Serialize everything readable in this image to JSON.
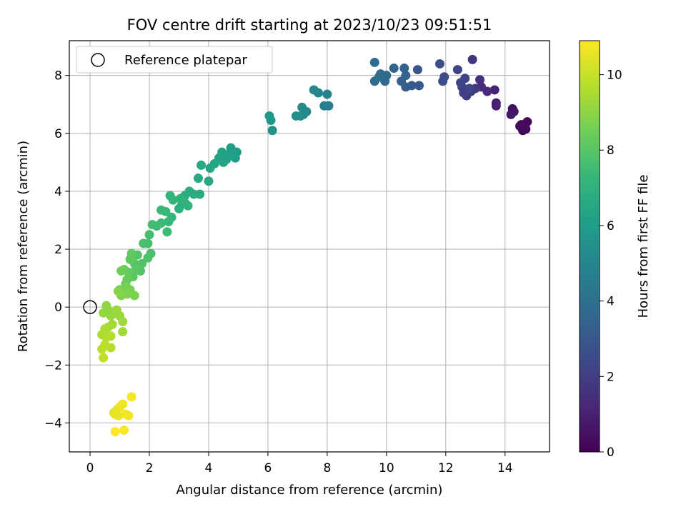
{
  "chart_data": {
    "type": "scatter",
    "title": "FOV centre drift starting at 2023/10/23 09:51:51",
    "xlabel": "Angular distance from reference (arcmin)",
    "ylabel": "Rotation from reference (arcmin)",
    "xlim": [
      -0.7,
      15.5
    ],
    "ylim": [
      -5.0,
      9.2
    ],
    "xticks": [
      0,
      2,
      4,
      6,
      8,
      10,
      12,
      14
    ],
    "yticks": [
      -4,
      -2,
      0,
      2,
      4,
      6,
      8
    ],
    "xtick_labels": [
      "0",
      "2",
      "4",
      "6",
      "8",
      "10",
      "12",
      "14"
    ],
    "ytick_labels": [
      "−4",
      "−2",
      "0",
      "2",
      "4",
      "6",
      "8"
    ],
    "grid": true,
    "legend": {
      "placement": "top-left",
      "label": "Reference platepar"
    },
    "reference_point": {
      "x": 0,
      "y": 0
    },
    "colorbar": {
      "label": "Hours from first FF file",
      "range": [
        0,
        10.9
      ],
      "ticks": [
        0,
        2,
        4,
        6,
        8,
        10
      ],
      "tick_labels": [
        "0",
        "2",
        "4",
        "6",
        "8",
        "10"
      ],
      "colormap": [
        "#440154",
        "#482878",
        "#3e4989",
        "#31688e",
        "#26828e",
        "#1f9e89",
        "#35b779",
        "#6ece58",
        "#b5de2b",
        "#fde725"
      ]
    },
    "series": [
      {
        "points": [
          [
            14.6,
            6.1,
            0.05
          ],
          [
            14.7,
            6.15,
            0.1
          ],
          [
            14.55,
            6.3,
            0.15
          ],
          [
            14.75,
            6.4,
            0.2
          ],
          [
            14.5,
            6.25,
            0.25
          ],
          [
            14.65,
            6.2,
            0.3
          ],
          [
            14.25,
            6.85,
            0.45
          ],
          [
            14.3,
            6.75,
            0.55
          ],
          [
            14.2,
            6.65,
            0.65
          ],
          [
            13.7,
            7.05,
            0.85
          ],
          [
            13.7,
            6.95,
            0.95
          ],
          [
            13.65,
            7.5,
            1.1
          ],
          [
            13.4,
            7.45,
            1.3
          ],
          [
            13.2,
            7.6,
            1.45
          ],
          [
            13.15,
            7.85,
            1.55
          ],
          [
            12.9,
            8.55,
            1.7
          ],
          [
            13.0,
            7.55,
            1.8
          ],
          [
            12.85,
            7.45,
            1.9
          ],
          [
            12.7,
            7.3,
            2.0
          ],
          [
            12.6,
            7.4,
            2.05
          ],
          [
            12.55,
            7.6,
            2.1
          ],
          [
            12.65,
            7.9,
            2.15
          ],
          [
            12.4,
            8.2,
            2.25
          ],
          [
            12.5,
            7.75,
            2.3
          ],
          [
            12.8,
            7.55,
            2.35
          ],
          [
            11.95,
            7.95,
            2.5
          ],
          [
            11.9,
            7.8,
            2.6
          ],
          [
            11.8,
            8.4,
            2.7
          ],
          [
            11.05,
            8.2,
            2.9
          ],
          [
            11.1,
            7.65,
            3.0
          ],
          [
            10.85,
            7.65,
            3.1
          ],
          [
            10.65,
            7.6,
            3.2
          ],
          [
            10.5,
            7.8,
            3.3
          ],
          [
            10.6,
            8.25,
            3.35
          ],
          [
            10.65,
            8.0,
            3.4
          ],
          [
            10.25,
            8.25,
            3.5
          ],
          [
            10.0,
            8.0,
            3.6
          ],
          [
            9.9,
            7.9,
            3.65
          ],
          [
            9.8,
            8.05,
            3.7
          ],
          [
            9.95,
            7.8,
            3.75
          ],
          [
            9.6,
            7.8,
            3.8
          ],
          [
            9.6,
            8.45,
            3.9
          ],
          [
            9.75,
            7.95,
            3.95
          ],
          [
            8.05,
            6.95,
            4.6
          ],
          [
            7.9,
            6.95,
            4.7
          ],
          [
            8.0,
            7.35,
            4.8
          ],
          [
            7.7,
            7.4,
            4.9
          ],
          [
            7.55,
            7.5,
            5.0
          ],
          [
            7.3,
            6.75,
            5.1
          ],
          [
            7.2,
            6.65,
            5.2
          ],
          [
            7.15,
            6.9,
            5.25
          ],
          [
            7.1,
            6.6,
            5.3
          ],
          [
            6.95,
            6.6,
            5.4
          ],
          [
            6.15,
            6.1,
            5.6
          ],
          [
            6.1,
            6.45,
            5.7
          ],
          [
            6.05,
            6.6,
            5.8
          ],
          [
            4.95,
            5.35,
            6.0
          ],
          [
            4.9,
            5.15,
            6.05
          ],
          [
            4.75,
            5.5,
            6.1
          ],
          [
            4.7,
            5.3,
            6.15
          ],
          [
            4.6,
            5.1,
            6.2
          ],
          [
            4.5,
            5.0,
            6.25
          ],
          [
            4.45,
            5.35,
            6.3
          ],
          [
            4.35,
            5.15,
            6.35
          ],
          [
            4.2,
            4.95,
            6.4
          ],
          [
            4.05,
            4.8,
            6.45
          ],
          [
            4.0,
            4.35,
            6.5
          ],
          [
            3.75,
            4.9,
            6.55
          ],
          [
            3.65,
            4.45,
            6.6
          ],
          [
            3.7,
            3.9,
            6.65
          ],
          [
            3.5,
            3.9,
            6.7
          ],
          [
            3.35,
            4.0,
            6.75
          ],
          [
            3.2,
            3.85,
            6.8
          ],
          [
            3.1,
            3.55,
            6.85
          ],
          [
            3.0,
            3.4,
            6.9
          ],
          [
            3.2,
            3.6,
            6.95
          ],
          [
            3.3,
            3.5,
            7.0
          ],
          [
            3.05,
            3.75,
            7.05
          ],
          [
            2.8,
            3.7,
            7.1
          ],
          [
            2.7,
            3.85,
            7.15
          ],
          [
            2.75,
            3.1,
            7.2
          ],
          [
            2.65,
            2.95,
            7.25
          ],
          [
            2.55,
            3.3,
            7.3
          ],
          [
            2.4,
            3.35,
            7.35
          ],
          [
            2.4,
            2.9,
            7.4
          ],
          [
            2.6,
            2.6,
            7.45
          ],
          [
            2.25,
            2.8,
            7.5
          ],
          [
            2.1,
            2.85,
            7.55
          ],
          [
            2.0,
            2.5,
            7.6
          ],
          [
            1.95,
            2.2,
            7.65
          ],
          [
            1.8,
            2.2,
            7.7
          ],
          [
            2.05,
            1.85,
            7.75
          ],
          [
            1.95,
            1.7,
            7.8
          ],
          [
            1.75,
            1.5,
            7.85
          ],
          [
            1.7,
            1.25,
            7.9
          ],
          [
            1.6,
            1.8,
            7.95
          ],
          [
            1.5,
            1.5,
            8.0
          ],
          [
            1.55,
            1.3,
            8.05
          ],
          [
            1.45,
            1.05,
            8.1
          ],
          [
            1.4,
            1.85,
            8.15
          ],
          [
            1.35,
            1.65,
            8.2
          ],
          [
            1.3,
            1.2,
            8.25
          ],
          [
            1.25,
            0.95,
            8.3
          ],
          [
            1.2,
            0.8,
            8.35
          ],
          [
            1.15,
            1.3,
            8.4
          ],
          [
            1.05,
            1.25,
            8.45
          ],
          [
            1.0,
            0.6,
            8.5
          ],
          [
            1.1,
            0.5,
            8.55
          ],
          [
            1.2,
            0.7,
            8.6
          ],
          [
            1.35,
            0.6,
            8.65
          ],
          [
            1.5,
            0.4,
            8.7
          ],
          [
            1.25,
            0.45,
            8.75
          ],
          [
            1.05,
            0.4,
            8.8
          ],
          [
            0.95,
            0.55,
            8.85
          ],
          [
            0.55,
            0.05,
            9.0
          ],
          [
            0.6,
            -0.1,
            9.05
          ],
          [
            0.45,
            -0.2,
            9.1
          ],
          [
            0.7,
            -0.3,
            9.15
          ],
          [
            0.9,
            -0.1,
            9.2
          ],
          [
            1.0,
            -0.3,
            9.25
          ],
          [
            1.1,
            -0.5,
            9.3
          ],
          [
            1.1,
            -0.85,
            9.35
          ],
          [
            0.75,
            -0.6,
            9.4
          ],
          [
            0.6,
            -0.7,
            9.45
          ],
          [
            0.5,
            -0.75,
            9.5
          ],
          [
            0.4,
            -0.95,
            9.55
          ],
          [
            0.55,
            -1.05,
            9.6
          ],
          [
            0.7,
            -1.0,
            9.65
          ],
          [
            0.7,
            -1.4,
            9.7
          ],
          [
            0.5,
            -1.3,
            9.75
          ],
          [
            0.4,
            -1.45,
            9.8
          ],
          [
            0.45,
            -1.75,
            9.85
          ],
          [
            0.8,
            -3.65,
            10.4
          ],
          [
            0.9,
            -3.55,
            10.45
          ],
          [
            0.85,
            -3.7,
            10.5
          ],
          [
            0.95,
            -3.75,
            10.55
          ],
          [
            1.0,
            -3.45,
            10.6
          ],
          [
            1.1,
            -3.35,
            10.65
          ],
          [
            1.2,
            -3.7,
            10.7
          ],
          [
            1.3,
            -3.75,
            10.75
          ],
          [
            1.4,
            -3.1,
            10.8
          ],
          [
            1.15,
            -4.25,
            10.85
          ],
          [
            0.85,
            -4.3,
            10.9
          ]
        ]
      }
    ]
  }
}
